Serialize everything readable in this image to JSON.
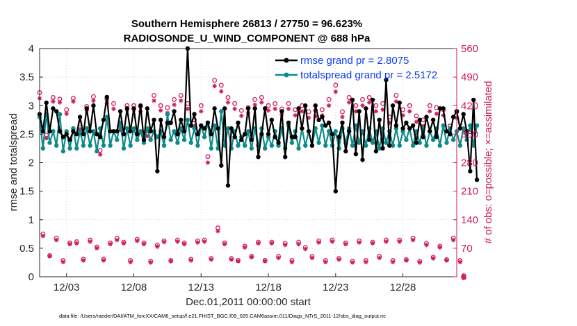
{
  "chart_data": {
    "type": "line",
    "title_line1": "Southern Hemisphere 26813 / 27750 = 96.623%",
    "title_line2": "RADIOSONDE_U_WIND_COMPONENT @ 688 hPa",
    "xlabel": "Dec.01,2011 00:00:00 start",
    "ylabel_left": "rmse and totalspread",
    "ylabel_right": "# of obs: o=possible; ×=assimilated",
    "xlim": [
      0,
      124
    ],
    "ylim": [
      0,
      4
    ],
    "ylim_right": [
      0,
      560
    ],
    "x_tick_labels": [
      "12/03",
      "12/08",
      "12/13",
      "12/18",
      "12/23",
      "12/28"
    ],
    "x_tick_steps": [
      8,
      28,
      48,
      68,
      88,
      108
    ],
    "y_ticks": [
      "0",
      "0.5",
      "1",
      "1.5",
      "2",
      "2.5",
      "3",
      "3.5",
      "4"
    ],
    "y_ticks_right": [
      "0",
      "70",
      "140",
      "210",
      "280",
      "350",
      "420",
      "490",
      "560"
    ],
    "legend": [
      {
        "label": "rmse grand pr = 2.8075",
        "color": "#000000"
      },
      {
        "label": "totalspread grand pr = 2.5172",
        "color": "#0e8a8a"
      }
    ],
    "colors": {
      "rmse": "#000000",
      "spread": "#0e8a8a",
      "obs": "#d01c5b",
      "axis_right": "#cc1a5a"
    },
    "series": [
      {
        "name": "rmse",
        "values": [
          2.85,
          2.55,
          3.05,
          2.55,
          2.95,
          2.9,
          2.55,
          2.45,
          2.5,
          2.4,
          2.55,
          2.5,
          2.8,
          2.5,
          2.95,
          2.55,
          3.0,
          2.5,
          2.45,
          2.75,
          3.15,
          2.55,
          2.55,
          2.55,
          2.9,
          2.5,
          2.95,
          2.55,
          2.95,
          2.5,
          3.0,
          2.4,
          2.95,
          2.55,
          2.75,
          1.85,
          2.75,
          2.45,
          2.7,
          2.7,
          2.9,
          2.5,
          2.75,
          2.55,
          4.0,
          2.65,
          2.85,
          2.5,
          2.65,
          2.6,
          2.7,
          2.5,
          2.95,
          2.6,
          1.95,
          2.95,
          1.6,
          2.6,
          2.45,
          2.7,
          2.4,
          2.5,
          2.95,
          2.4,
          2.95,
          2.1,
          2.5,
          2.95,
          2.5,
          2.75,
          2.45,
          2.35,
          2.9,
          2.1,
          2.7,
          2.45,
          2.45,
          2.95,
          2.6,
          3.0,
          2.55,
          2.3,
          3.0,
          2.75,
          2.8,
          2.65,
          2.7,
          2.5,
          1.5,
          2.45,
          2.7,
          2.2,
          2.55,
          3.1,
          2.15,
          2.9,
          2.05,
          2.95,
          2.4,
          3.1,
          2.2,
          2.75,
          2.25,
          3.45,
          2.3,
          3.0,
          2.65,
          3.05,
          2.6,
          2.7,
          2.6,
          2.65,
          2.35,
          2.75,
          2.45,
          2.8,
          2.55,
          2.75,
          2.45,
          2.95,
          2.95,
          2.55,
          2.5,
          2.8,
          2.9,
          2.6,
          2.85,
          2.55,
          1.85,
          3.1,
          1.7
        ]
      },
      {
        "name": "totalspread",
        "values": [
          2.8,
          2.25,
          2.85,
          2.35,
          2.55,
          2.3,
          2.85,
          2.2,
          2.55,
          2.25,
          2.6,
          2.25,
          2.55,
          2.3,
          2.6,
          2.3,
          2.55,
          2.2,
          2.6,
          2.3,
          2.8,
          2.3,
          2.55,
          2.4,
          2.7,
          2.25,
          2.6,
          2.3,
          2.6,
          2.4,
          2.55,
          2.35,
          2.6,
          2.4,
          2.55,
          2.45,
          2.55,
          2.3,
          2.85,
          2.4,
          2.55,
          2.35,
          2.6,
          2.4,
          2.75,
          2.35,
          2.6,
          2.3,
          2.65,
          2.45,
          2.7,
          2.25,
          2.65,
          2.25,
          2.9,
          2.3,
          2.6,
          2.25,
          2.55,
          2.3,
          2.45,
          2.3,
          2.55,
          2.25,
          2.6,
          2.3,
          2.6,
          2.25,
          2.45,
          2.3,
          2.55,
          2.3,
          2.6,
          2.25,
          2.65,
          2.35,
          2.55,
          2.25,
          2.6,
          2.3,
          2.55,
          2.3,
          2.6,
          2.35,
          2.65,
          2.3,
          2.55,
          2.3,
          2.55,
          2.25,
          2.6,
          2.35,
          2.6,
          2.3,
          2.65,
          2.35,
          2.55,
          2.3,
          2.6,
          2.35,
          2.55,
          2.25,
          2.6,
          2.35,
          2.55,
          2.3,
          2.6,
          2.3,
          2.55,
          2.4,
          2.6,
          2.3,
          2.55,
          2.35,
          2.6,
          2.3,
          2.55,
          2.4,
          2.6,
          2.3,
          2.65,
          2.35,
          2.6,
          2.4,
          2.55,
          2.3,
          2.6,
          2.4,
          2.65,
          2.3,
          2.65
        ]
      },
      {
        "name": "obs_possible",
        "values": [
          452,
          105,
          348,
          52,
          440,
          95,
          436,
          40,
          410,
          83,
          438,
          86,
          375,
          43,
          418,
          90,
          442,
          73,
          310,
          43,
          436,
          83,
          425,
          95,
          370,
          85,
          420,
          40,
          420,
          92,
          418,
          83,
          358,
          38,
          445,
          78,
          420,
          88,
          415,
          40,
          435,
          90,
          445,
          83,
          425,
          43,
          385,
          88,
          420,
          90,
          295,
          45,
          482,
          120,
          470,
          83,
          440,
          45,
          425,
          40,
          408,
          75,
          415,
          50,
          435,
          85,
          440,
          40,
          420,
          85,
          425,
          50,
          412,
          82,
          425,
          40,
          410,
          85,
          420,
          72,
          405,
          50,
          408,
          88,
          410,
          40,
          435,
          90,
          470,
          45,
          405,
          83,
          440,
          38,
          420,
          88,
          435,
          40,
          440,
          85,
          420,
          50,
          425,
          90,
          392,
          40,
          445,
          90,
          410,
          42,
          420,
          95,
          395,
          38,
          385,
          82,
          420,
          48,
          415,
          75,
          410,
          42,
          370,
          95,
          405,
          40,
          0
        ]
      },
      {
        "name": "obs_assimilated",
        "values": [
          438,
          100,
          340,
          50,
          430,
          90,
          428,
          36,
          400,
          80,
          430,
          82,
          362,
          40,
          408,
          86,
          432,
          70,
          300,
          40,
          426,
          80,
          412,
          90,
          360,
          82,
          410,
          36,
          410,
          88,
          406,
          80,
          345,
          35,
          432,
          74,
          408,
          85,
          402,
          38,
          422,
          86,
          432,
          80,
          412,
          40,
          370,
          84,
          406,
          86,
          280,
          42,
          468,
          112,
          455,
          80,
          428,
          42,
          412,
          38,
          395,
          72,
          402,
          48,
          422,
          82,
          428,
          38,
          408,
          82,
          412,
          46,
          398,
          78,
          412,
          36,
          396,
          80,
          406,
          68,
          390,
          46,
          394,
          84,
          396,
          36,
          420,
          86,
          454,
          42,
          392,
          80,
          428,
          35,
          406,
          84,
          420,
          36,
          428,
          82,
          406,
          46,
          410,
          86,
          378,
          36,
          430,
          86,
          396,
          40,
          406,
          90,
          380,
          35,
          370,
          78,
          406,
          45,
          400,
          72,
          396,
          40,
          355,
          90,
          390,
          36,
          0
        ]
      }
    ],
    "footer": "data file: /Users/raeder/DAI/ATM_forcXX/CAM6_setup/f.e21.FHIST_BGC.f09_025.CAM6assim.011/Diags_NTrS_2011-12/obs_diag_output.nc"
  }
}
